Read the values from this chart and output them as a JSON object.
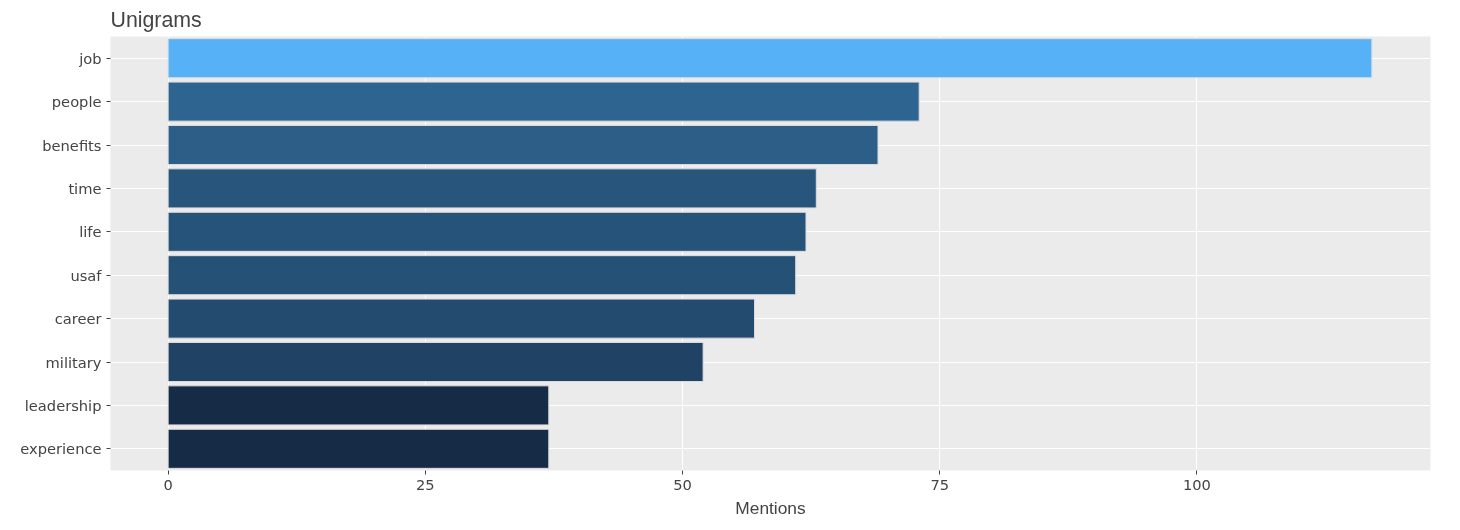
{
  "chart_data": {
    "type": "bar",
    "orientation": "horizontal",
    "title": "Unigrams",
    "xlabel": "Mentions",
    "categories": [
      "job",
      "people",
      "benefits",
      "time",
      "life",
      "usaf",
      "career",
      "military",
      "leadership",
      "experience"
    ],
    "values": [
      117,
      73,
      69,
      63,
      62,
      61,
      57,
      52,
      37,
      37
    ],
    "colors": [
      "#56b1f7",
      "#2e6590",
      "#2c5e87",
      "#27557b",
      "#265379",
      "#265177",
      "#234a6f",
      "#1f4265",
      "#162b45",
      "#162b45"
    ],
    "xlim": [
      -5.6,
      122.7
    ],
    "xticks": [
      0,
      25,
      50,
      75,
      100
    ],
    "grid": true
  }
}
